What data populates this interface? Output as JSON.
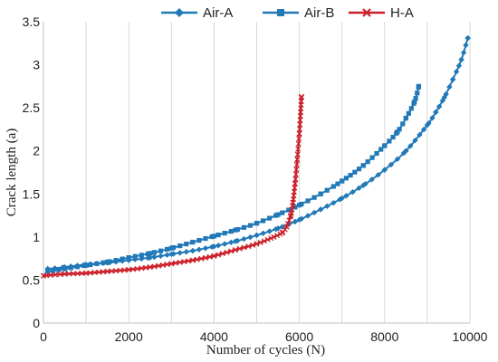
{
  "chart_data": {
    "type": "line",
    "title": "",
    "xlabel": "Number of cycles (N)",
    "ylabel": "Crack length (a)",
    "xlim": [
      0,
      10000
    ],
    "ylim": [
      0,
      3.5
    ],
    "x_ticks": [
      0,
      2000,
      4000,
      6000,
      8000,
      10000
    ],
    "x_tick_labels": [
      "0",
      "2000",
      "4000",
      "6000",
      "8000",
      "10000"
    ],
    "y_ticks": [
      0,
      0.5,
      1,
      1.5,
      2,
      2.5,
      3,
      3.5
    ],
    "y_tick_labels": [
      "0",
      "0.5",
      "1",
      "1.5",
      "2",
      "2.5",
      "3",
      "3.5"
    ],
    "grid": "vertical",
    "legend_position": "top",
    "series": [
      {
        "name": "Air-A",
        "color": "#2179b8",
        "marker": "diamond",
        "x": [
          100,
          500,
          1000,
          1500,
          2000,
          2500,
          3000,
          3500,
          4000,
          4500,
          5000,
          5500,
          6000,
          6500,
          7000,
          7500,
          8000,
          8500,
          9000,
          9200,
          9400,
          9600,
          9800,
          9950
        ],
        "y": [
          0.63,
          0.65,
          0.68,
          0.7,
          0.73,
          0.76,
          0.8,
          0.84,
          0.89,
          0.95,
          1.02,
          1.1,
          1.2,
          1.32,
          1.45,
          1.6,
          1.78,
          2.0,
          2.3,
          2.45,
          2.62,
          2.83,
          3.06,
          3.31
        ]
      },
      {
        "name": "Air-B",
        "color": "#2179b8",
        "marker": "square",
        "x": [
          100,
          500,
          1000,
          1500,
          2000,
          2500,
          3000,
          3500,
          4000,
          4500,
          5000,
          5500,
          6000,
          6500,
          7000,
          7500,
          8000,
          8300,
          8500,
          8700,
          8800
        ],
        "y": [
          0.6,
          0.63,
          0.67,
          0.71,
          0.76,
          0.81,
          0.87,
          0.94,
          1.01,
          1.08,
          1.16,
          1.26,
          1.37,
          1.5,
          1.65,
          1.83,
          2.06,
          2.22,
          2.38,
          2.57,
          2.75
        ]
      },
      {
        "name": "H-A",
        "color": "#cc1f2a",
        "marker": "x",
        "x": [
          0,
          500,
          1000,
          1500,
          2000,
          2500,
          3000,
          3500,
          4000,
          4500,
          5000,
          5400,
          5600,
          5700,
          5800,
          5850,
          5900,
          5950,
          6000,
          6030,
          6050
        ],
        "y": [
          0.55,
          0.57,
          0.58,
          0.6,
          0.62,
          0.65,
          0.69,
          0.73,
          0.78,
          0.85,
          0.92,
          1.0,
          1.05,
          1.12,
          1.25,
          1.4,
          1.62,
          1.9,
          2.2,
          2.45,
          2.63
        ]
      }
    ]
  }
}
